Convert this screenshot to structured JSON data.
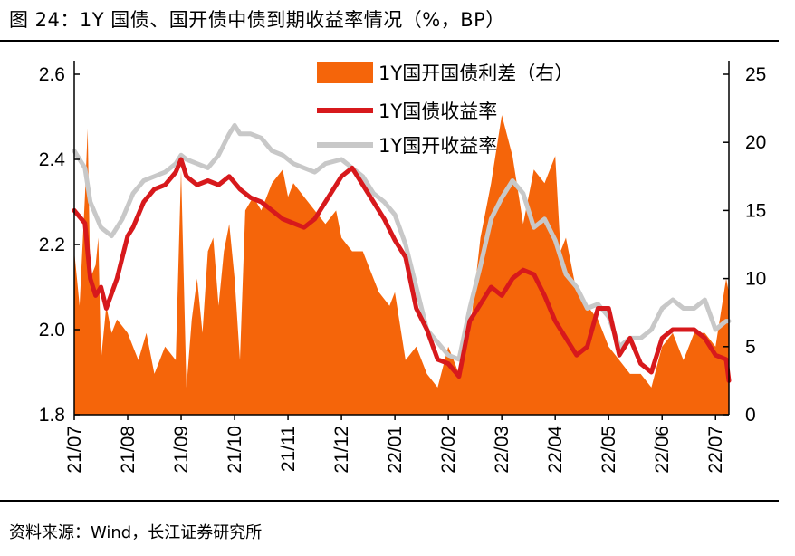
{
  "figure_title": "图 24：1Y 国债、国开债中债到期收益率情况（%，BP）",
  "source_note": "资料来源：Wind，长江证券研究所",
  "colors": {
    "spread": "#F5650A",
    "gov": "#D7191C",
    "cdb": "#C8C8C8",
    "axis": "#000000"
  },
  "chart_data": {
    "type": "line",
    "title": "",
    "legend_placement": "top",
    "x_categories": [
      "21/07",
      "21/08",
      "21/09",
      "21/10",
      "21/11",
      "21/12",
      "22/01",
      "22/02",
      "22/03",
      "22/04",
      "22/05",
      "22/06",
      "22/07"
    ],
    "y_left": {
      "ylim": [
        1.8,
        2.6
      ],
      "ticks": [
        "1.8",
        "2.0",
        "2.2",
        "2.4",
        "2.6"
      ]
    },
    "y_right": {
      "ylim": [
        0,
        25
      ],
      "ticks": [
        "0",
        "5",
        "10",
        "15",
        "20",
        "25"
      ]
    },
    "grid": false,
    "series": [
      {
        "name": "1Y国开国债利差（右）",
        "kind": "area",
        "axis": "right",
        "color": "#F5650A",
        "x": [
          0,
          0.05,
          0.1,
          0.2,
          0.25,
          0.3,
          0.4,
          0.45,
          0.5,
          0.6,
          0.7,
          0.8,
          1.0,
          1.2,
          1.35,
          1.5,
          1.7,
          1.9,
          2.0,
          2.1,
          2.2,
          2.3,
          2.4,
          2.5,
          2.6,
          2.7,
          2.8,
          2.9,
          3.0,
          3.1,
          3.2,
          3.35,
          3.5,
          3.7,
          3.9,
          4.0,
          4.1,
          4.3,
          4.5,
          4.7,
          4.9,
          5.0,
          5.2,
          5.4,
          5.5,
          5.7,
          5.9,
          6.0,
          6.2,
          6.4,
          6.6,
          6.8,
          7.0,
          7.2,
          7.4,
          7.6,
          7.8,
          8.0,
          8.2,
          8.4,
          8.6,
          8.8,
          9.0,
          9.1,
          9.2,
          9.4,
          9.6,
          9.8,
          10.0,
          10.2,
          10.4,
          10.6,
          10.8,
          11.0,
          11.2,
          11.4,
          11.6,
          11.8,
          12.0,
          12.2,
          12.25
        ],
        "values": [
          12,
          10,
          8,
          16,
          21,
          10,
          11,
          13,
          4,
          8,
          6,
          7,
          6,
          4,
          6,
          3,
          5,
          4,
          18,
          2,
          7,
          10,
          6,
          12,
          13,
          8,
          12,
          14,
          10,
          4,
          15,
          16,
          15,
          17,
          18,
          16,
          17,
          16,
          15,
          14,
          15,
          13,
          12,
          12,
          11,
          9,
          8,
          9,
          4,
          5,
          3,
          2,
          5,
          3,
          6,
          13,
          17,
          22,
          19,
          14,
          18,
          17,
          19,
          12,
          13,
          9,
          8,
          7,
          5,
          4,
          3,
          3,
          2,
          5,
          6,
          4,
          6,
          6,
          5,
          10,
          9
        ]
      },
      {
        "name": "1Y国债收益率",
        "kind": "line",
        "axis": "left",
        "color": "#D7191C",
        "x": [
          0,
          0.2,
          0.3,
          0.4,
          0.5,
          0.6,
          0.8,
          1.0,
          1.1,
          1.3,
          1.5,
          1.7,
          1.9,
          2.0,
          2.1,
          2.3,
          2.5,
          2.7,
          2.9,
          3.1,
          3.3,
          3.5,
          3.7,
          3.9,
          4.1,
          4.3,
          4.5,
          4.7,
          5.0,
          5.2,
          5.4,
          5.6,
          5.8,
          6.0,
          6.2,
          6.4,
          6.6,
          6.8,
          7.0,
          7.2,
          7.4,
          7.6,
          7.8,
          8.0,
          8.2,
          8.4,
          8.6,
          8.8,
          9.0,
          9.2,
          9.4,
          9.6,
          9.8,
          10.0,
          10.2,
          10.4,
          10.6,
          10.8,
          11.0,
          11.2,
          11.4,
          11.6,
          11.8,
          12.0,
          12.2,
          12.25
        ],
        "values": [
          2.28,
          2.25,
          2.12,
          2.08,
          2.1,
          2.05,
          2.12,
          2.22,
          2.24,
          2.3,
          2.33,
          2.34,
          2.37,
          2.4,
          2.36,
          2.34,
          2.35,
          2.34,
          2.36,
          2.33,
          2.31,
          2.3,
          2.28,
          2.26,
          2.25,
          2.24,
          2.26,
          2.3,
          2.36,
          2.38,
          2.34,
          2.3,
          2.26,
          2.21,
          2.17,
          2.05,
          2.0,
          1.93,
          1.92,
          1.89,
          2.02,
          2.06,
          2.1,
          2.08,
          2.12,
          2.14,
          2.13,
          2.08,
          2.02,
          1.98,
          1.94,
          1.96,
          2.05,
          2.05,
          1.94,
          1.98,
          1.92,
          1.9,
          1.98,
          2.0,
          2.0,
          2.0,
          1.98,
          1.94,
          1.93,
          1.88
        ]
      },
      {
        "name": "1Y国开收益率",
        "kind": "line",
        "axis": "left",
        "color": "#C8C8C8",
        "x": [
          0,
          0.2,
          0.3,
          0.5,
          0.7,
          0.9,
          1.1,
          1.3,
          1.5,
          1.7,
          1.9,
          2.0,
          2.1,
          2.3,
          2.5,
          2.7,
          2.9,
          3.0,
          3.1,
          3.3,
          3.5,
          3.7,
          3.9,
          4.1,
          4.3,
          4.5,
          4.7,
          5.0,
          5.2,
          5.4,
          5.6,
          5.8,
          6.0,
          6.2,
          6.4,
          6.6,
          6.8,
          7.0,
          7.2,
          7.4,
          7.6,
          7.8,
          8.0,
          8.2,
          8.4,
          8.6,
          8.8,
          9.0,
          9.2,
          9.4,
          9.6,
          9.8,
          10.0,
          10.2,
          10.4,
          10.6,
          10.8,
          11.0,
          11.2,
          11.4,
          11.6,
          11.8,
          12.0,
          12.2,
          12.25
        ],
        "values": [
          2.42,
          2.38,
          2.3,
          2.24,
          2.22,
          2.26,
          2.32,
          2.35,
          2.36,
          2.37,
          2.39,
          2.41,
          2.4,
          2.39,
          2.38,
          2.41,
          2.46,
          2.48,
          2.46,
          2.46,
          2.45,
          2.42,
          2.41,
          2.39,
          2.38,
          2.37,
          2.39,
          2.4,
          2.38,
          2.36,
          2.32,
          2.3,
          2.27,
          2.2,
          2.1,
          2.0,
          1.97,
          1.94,
          1.93,
          2.05,
          2.15,
          2.26,
          2.31,
          2.35,
          2.32,
          2.24,
          2.26,
          2.21,
          2.13,
          2.1,
          2.05,
          2.06,
          2.03,
          1.96,
          1.98,
          1.98,
          2.0,
          2.05,
          2.07,
          2.05,
          2.05,
          2.07,
          2.0,
          2.02,
          2.02
        ]
      }
    ]
  }
}
